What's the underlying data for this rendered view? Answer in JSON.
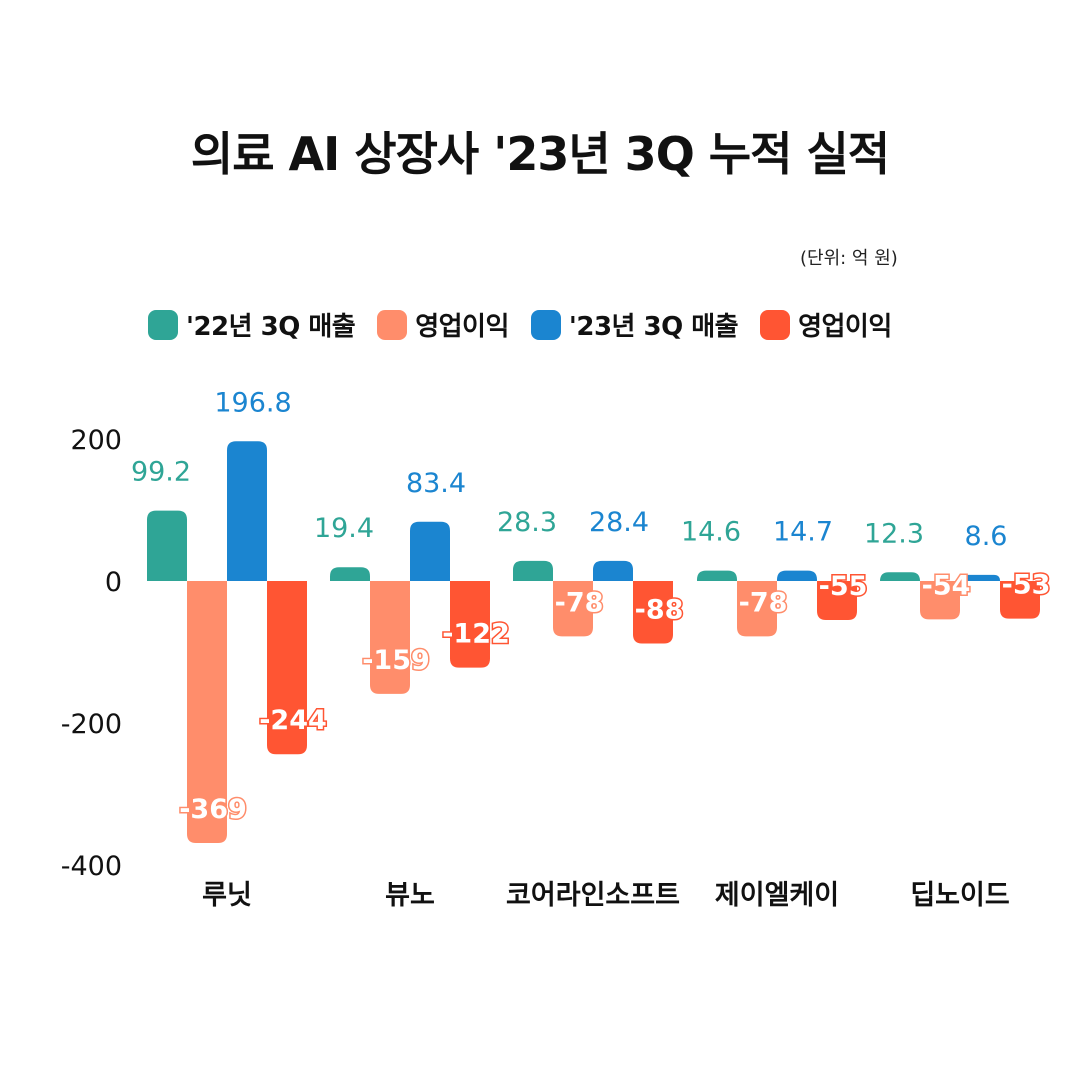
{
  "title": "의료 AI 상장사 '23년 3Q 누적 실적",
  "unit": "(단위: 억 원)",
  "legend": [
    {
      "label": "'22년 3Q 매출",
      "color": "#2fa596"
    },
    {
      "label": "영업이익",
      "color": "#ff8d6b"
    },
    {
      "label": "'23년 3Q 매출",
      "color": "#1b85d0"
    },
    {
      "label": "영업이익",
      "color": "#ff5533"
    }
  ],
  "chart_data": {
    "type": "bar",
    "title": "의료 AI 상장사 '23년 3Q 누적 실적",
    "categories": [
      "루닛",
      "뷰노",
      "코어라인소프트",
      "제이엘케이",
      "딥노이드"
    ],
    "series": [
      {
        "name": "'22년 3Q 매출",
        "color": "#2fa596",
        "values": [
          99.2,
          19.4,
          28.3,
          14.6,
          12.3
        ],
        "labels": [
          "99.2",
          "19.4",
          "28.3",
          "14.6",
          "12.3"
        ]
      },
      {
        "name": "영업이익",
        "color": "#ff8d6b",
        "values": [
          -369,
          -159,
          -78,
          -78,
          -54
        ],
        "labels": [
          "-369",
          "-159",
          "-78",
          "-78",
          "-54"
        ]
      },
      {
        "name": "'23년 3Q 매출",
        "color": "#1b85d0",
        "values": [
          196.8,
          83.4,
          28.4,
          14.7,
          8.6
        ],
        "labels": [
          "196.8",
          "83.4",
          "28.4",
          "14.7",
          "8.6"
        ]
      },
      {
        "name": "영업이익",
        "color": "#ff5533",
        "values": [
          -244,
          -122,
          -88,
          -55,
          -53
        ],
        "labels": [
          "-244",
          "-122",
          "-88",
          "-55",
          "-53"
        ]
      }
    ],
    "yticks": [
      "200",
      "0",
      "-200",
      "-400"
    ],
    "ylim": [
      -400,
      200
    ],
    "grid": false,
    "legend": "top"
  }
}
